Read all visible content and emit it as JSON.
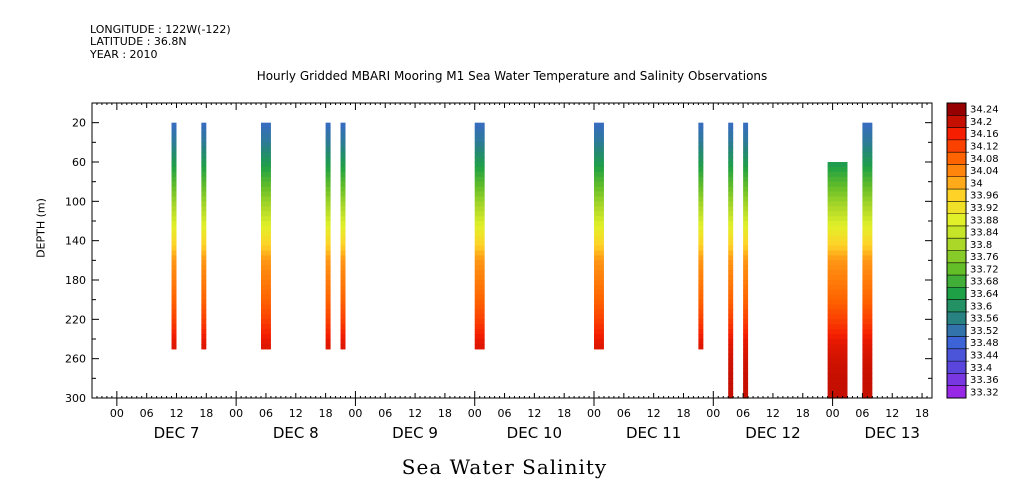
{
  "header": {
    "longitude": "LONGITUDE : 122W(-122)",
    "latitude": "LATITUDE : 36.8N",
    "year": "YEAR : 2010"
  },
  "chart_data": {
    "type": "heatmap",
    "title": "Hourly Gridded MBARI Mooring M1 Sea Water Temperature and Salinity Observations",
    "ylabel": "DEPTH (m)",
    "footer_label": "Sea Water Salinity",
    "x_hours_ticks": [
      "00",
      "06",
      "12",
      "18",
      "00",
      "06",
      "12",
      "18",
      "00",
      "06",
      "12",
      "18",
      "00",
      "06",
      "12",
      "18",
      "00",
      "06",
      "12",
      "18",
      "00",
      "06",
      "12",
      "18",
      "00",
      "06",
      "12",
      "18"
    ],
    "x_day_labels": [
      "DEC  7",
      "DEC  8",
      "DEC  9",
      "DEC 10",
      "DEC 11",
      "DEC 12",
      "DEC 13"
    ],
    "x_range_hours": [
      -5,
      164
    ],
    "y_ticks": [
      20,
      60,
      100,
      140,
      180,
      220,
      260,
      300
    ],
    "y_range": [
      300,
      0
    ],
    "colorbar_levels": [
      "34.24",
      "34.2",
      "34.16",
      "34.12",
      "34.08",
      "34.04",
      "34",
      "33.96",
      "33.92",
      "33.88",
      "33.84",
      "33.8",
      "33.76",
      "33.72",
      "33.68",
      "33.64",
      "33.6",
      "33.56",
      "33.52",
      "33.48",
      "33.44",
      "33.4",
      "33.36",
      "33.32"
    ],
    "columns": [
      {
        "label": "DEC 7 12:00",
        "start_hour": 11,
        "end_hour": 12,
        "top_depth": 20,
        "bottom_depth": 250
      },
      {
        "label": "DEC 7 17:00",
        "start_hour": 17,
        "end_hour": 18,
        "top_depth": 20,
        "bottom_depth": 250
      },
      {
        "label": "DEC 8 05:00",
        "start_hour": 29,
        "end_hour": 31,
        "top_depth": 20,
        "bottom_depth": 250
      },
      {
        "label": "DEC 8 18:00",
        "start_hour": 42,
        "end_hour": 43,
        "top_depth": 20,
        "bottom_depth": 250
      },
      {
        "label": "DEC 8 21:00",
        "start_hour": 45,
        "end_hour": 46,
        "top_depth": 20,
        "bottom_depth": 250
      },
      {
        "label": "DEC 10 00:00",
        "start_hour": 72,
        "end_hour": 74,
        "top_depth": 20,
        "bottom_depth": 250
      },
      {
        "label": "DEC 11 00:00",
        "start_hour": 96,
        "end_hour": 98,
        "top_depth": 20,
        "bottom_depth": 250
      },
      {
        "label": "DEC 11 21:00",
        "start_hour": 117,
        "end_hour": 118,
        "top_depth": 20,
        "bottom_depth": 250
      },
      {
        "label": "DEC 12 03:00",
        "start_hour": 123,
        "end_hour": 124,
        "top_depth": 20,
        "bottom_depth": 300
      },
      {
        "label": "DEC 12 06:00",
        "start_hour": 126,
        "end_hour": 127,
        "top_depth": 20,
        "bottom_depth": 300
      },
      {
        "label": "DEC 12 23:00",
        "start_hour": 143,
        "end_hour": 147,
        "top_depth": 60,
        "bottom_depth": 300
      },
      {
        "label": "DEC 13 06:00",
        "start_hour": 150,
        "end_hour": 152,
        "top_depth": 20,
        "bottom_depth": 300
      }
    ],
    "salinity_profile": {
      "depths": [
        20,
        40,
        60,
        80,
        100,
        120,
        140,
        160,
        180,
        200,
        220,
        240,
        260,
        280,
        300
      ],
      "values": [
        33.5,
        33.54,
        33.62,
        33.7,
        33.78,
        33.86,
        33.94,
        34.02,
        34.05,
        34.08,
        34.12,
        34.17,
        34.19,
        34.2,
        34.2
      ]
    }
  }
}
